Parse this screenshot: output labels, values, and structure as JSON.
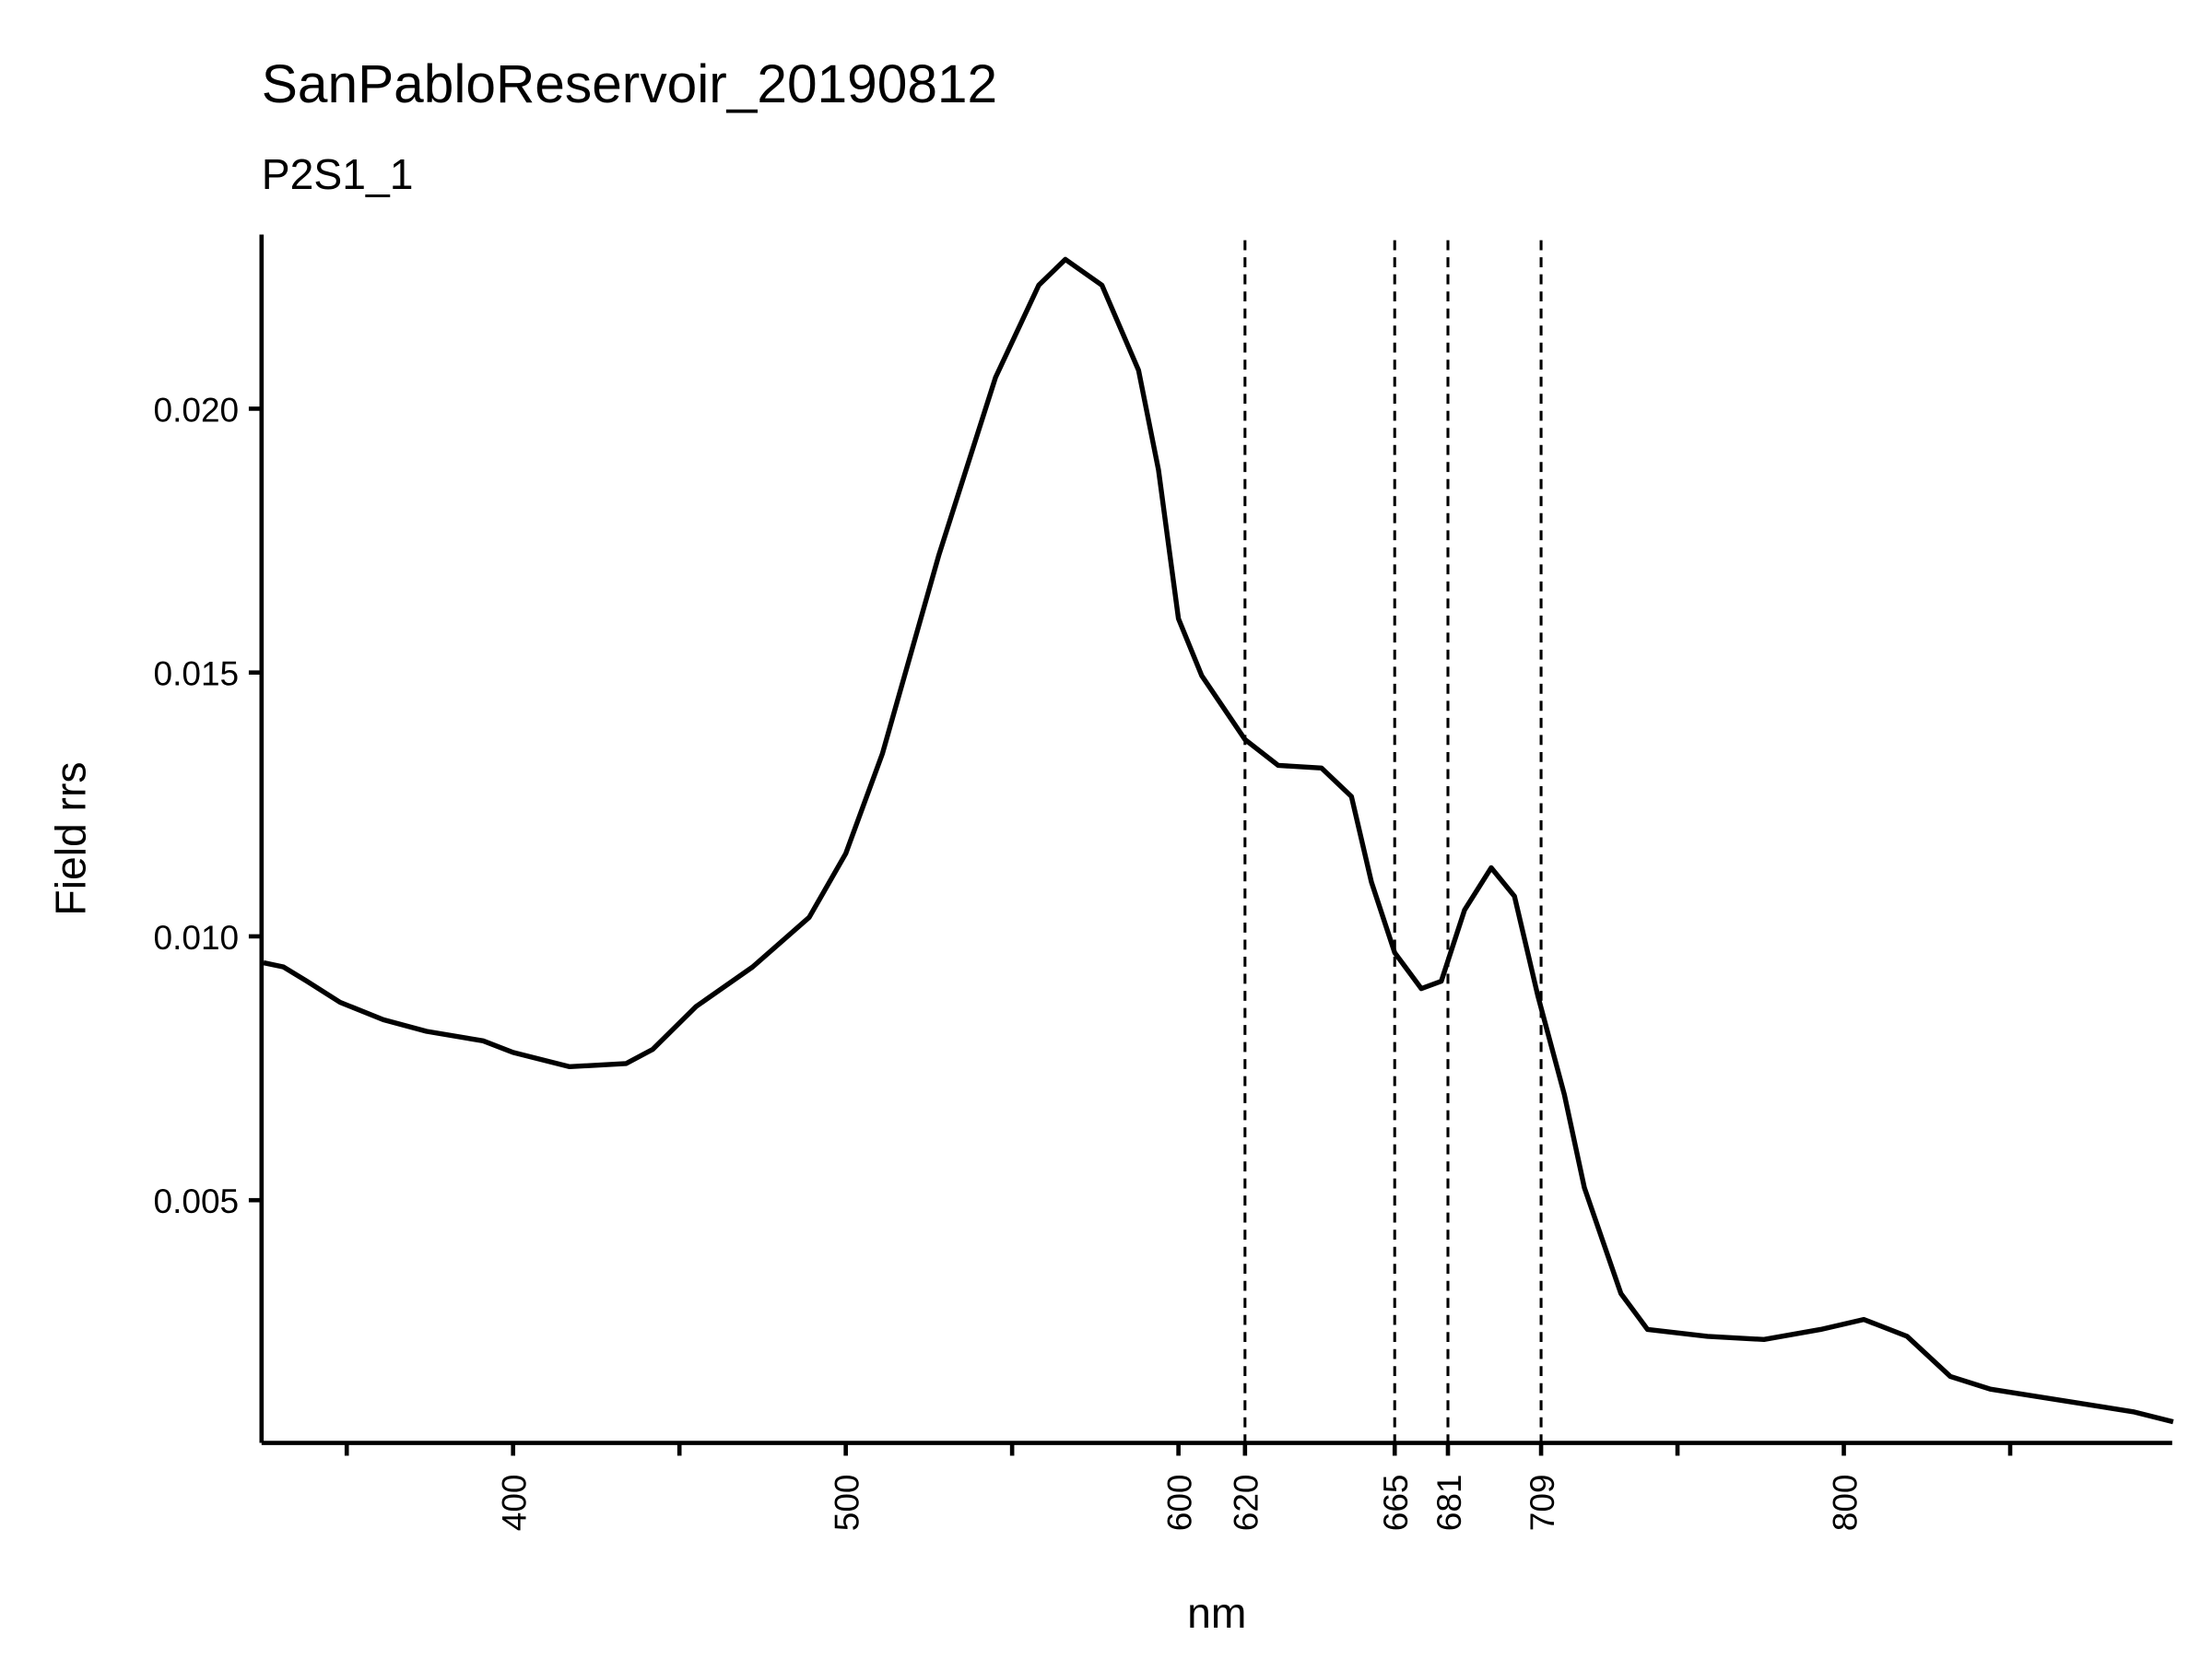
{
  "chart_data": {
    "type": "line",
    "title": "SanPabloReservoir_20190812",
    "subtitle": "P2S1_1",
    "x_label": "nm",
    "y_label": "Field rrs",
    "x": [
      325,
      331,
      338,
      348,
      361,
      374,
      391,
      400,
      417,
      434,
      442,
      455,
      472,
      489,
      500,
      511,
      528,
      545,
      558,
      566,
      577,
      588,
      594,
      600,
      607,
      620,
      630,
      643,
      652,
      658,
      665,
      673,
      679,
      686,
      694,
      701,
      708,
      716,
      722,
      733,
      741,
      759,
      776,
      793,
      806,
      819,
      832,
      844,
      865,
      887,
      899
    ],
    "series": [
      {
        "name": "rrs",
        "color": "#000000",
        "values": [
          0.0095,
          0.00942,
          0.00915,
          0.00875,
          0.00842,
          0.0082,
          0.00802,
          0.0078,
          0.00753,
          0.00759,
          0.00786,
          0.00867,
          0.00942,
          0.01036,
          0.01157,
          0.01346,
          0.01723,
          0.02059,
          0.02234,
          0.02283,
          0.02234,
          0.02073,
          0.01884,
          0.01602,
          0.01494,
          0.01373,
          0.01324,
          0.01319,
          0.01265,
          0.01103,
          0.00969,
          0.00901,
          0.00915,
          0.0105,
          0.0113,
          0.01076,
          0.00888,
          0.007,
          0.00524,
          0.00323,
          0.00255,
          0.00242,
          0.00236,
          0.00255,
          0.00274,
          0.00242,
          0.00166,
          0.00142,
          0.00121,
          0.00099,
          0.0008
        ]
      }
    ],
    "vlines": [
      620,
      665,
      681,
      709
    ],
    "xlim": [
      324.4,
      898.7
    ],
    "xticks": [
      {
        "value": 350,
        "label": null
      },
      400,
      {
        "value": 450,
        "label": null
      },
      500,
      {
        "value": 550,
        "label": null
      },
      600,
      620,
      665,
      681,
      709,
      {
        "value": 750,
        "label": null
      },
      800,
      {
        "value": 850,
        "label": null
      }
    ],
    "ylim": [
      0.0004,
      0.0233
    ],
    "yticks": [
      {
        "value": 0.005,
        "label": "0.005"
      },
      {
        "value": 0.01,
        "label": "0.010"
      },
      {
        "value": 0.015,
        "label": "0.015"
      },
      {
        "value": 0.02,
        "label": "0.020"
      }
    ],
    "grid": false
  }
}
